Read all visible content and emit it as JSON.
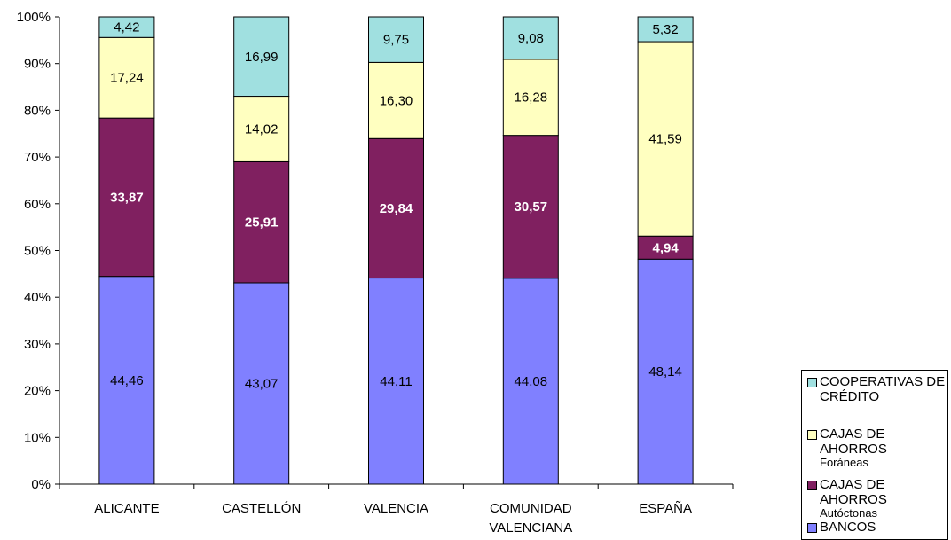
{
  "chart_data": {
    "type": "bar",
    "stacked": true,
    "normalized": true,
    "categories": [
      "ALICANTE",
      "CASTELLÓN",
      "VALENCIA",
      "COMUNIDAD VALENCIANA",
      "ESPAÑA"
    ],
    "category_lines": [
      [
        "ALICANTE"
      ],
      [
        "CASTELLÓN"
      ],
      [
        "VALENCIA"
      ],
      [
        "COMUNIDAD",
        "VALENCIANA"
      ],
      [
        "ESPAÑA"
      ]
    ],
    "series": [
      {
        "name": "BANCOS",
        "color": "#8080ff",
        "label_color": "#000000",
        "label_bold": false,
        "values": [
          44.46,
          43.07,
          44.11,
          44.08,
          48.14
        ],
        "labels": [
          "44,46",
          "43,07",
          "44,11",
          "44,08",
          "48,14"
        ]
      },
      {
        "name": "CAJAS DE AHORROS Autóctonas",
        "color": "#802060",
        "label_color": "#ffffff",
        "label_bold": true,
        "values": [
          33.87,
          25.91,
          29.84,
          30.57,
          4.94
        ],
        "labels": [
          "33,87",
          "25,91",
          "29,84",
          "30,57",
          "4,94"
        ]
      },
      {
        "name": "CAJAS DE AHORROS Foráneas",
        "color": "#ffffc0",
        "label_color": "#000000",
        "label_bold": false,
        "values": [
          17.24,
          14.02,
          16.3,
          16.28,
          41.59
        ],
        "labels": [
          "17,24",
          "14,02",
          "16,30",
          "16,28",
          "41,59"
        ]
      },
      {
        "name": "COOPERATIVAS DE CRÉDITO",
        "color": "#a0e0e0",
        "label_color": "#000000",
        "label_bold": false,
        "values": [
          4.42,
          16.99,
          9.75,
          9.08,
          5.32
        ],
        "labels": [
          "4,42",
          "16,99",
          "9,75",
          "9,08",
          "5,32"
        ]
      }
    ],
    "yticks": [
      "0%",
      "10%",
      "20%",
      "30%",
      "40%",
      "50%",
      "60%",
      "70%",
      "80%",
      "90%",
      "100%"
    ],
    "ylim": [
      0,
      100
    ],
    "grid": false,
    "legend_position": "bottom-right"
  },
  "legend": [
    {
      "main": "COOPERATIVAS DE CRÉDITO",
      "sub": "",
      "color": "#a0e0e0"
    },
    {
      "main": "CAJAS DE AHORROS",
      "sub": "Foráneas",
      "color": "#ffffc0"
    },
    {
      "main": "CAJAS DE AHORROS",
      "sub": "Autóctonas",
      "color": "#802060"
    },
    {
      "main": "BANCOS",
      "sub": "",
      "color": "#8080ff"
    }
  ]
}
